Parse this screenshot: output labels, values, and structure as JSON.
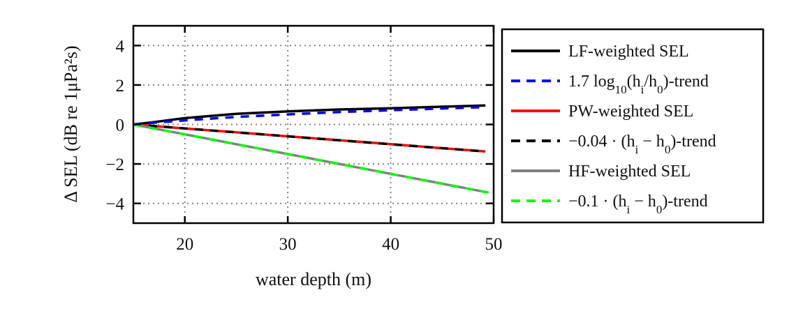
{
  "chart_data": {
    "type": "line",
    "xlabel": "water depth (m)",
    "ylabel": "Δ SEL (dB re 1μPa²s)",
    "xlim": [
      15,
      50
    ],
    "ylim": [
      -5,
      5
    ],
    "xticks": [
      20,
      30,
      40,
      50
    ],
    "xtick_labels": [
      "20",
      "30",
      "40",
      "50"
    ],
    "yticks": [
      4,
      2,
      0,
      -2,
      -4
    ],
    "ytick_labels": [
      "4",
      "2",
      "0",
      "−2",
      "−4"
    ],
    "grid": true,
    "legend_position": "outside-right",
    "series": [
      {
        "name": "LF-weighted SEL",
        "color": "#000000",
        "style": "solid",
        "x": [
          15,
          17,
          20,
          25,
          30,
          35,
          40,
          45,
          49.2
        ],
        "y": [
          0,
          0.12,
          0.32,
          0.54,
          0.66,
          0.76,
          0.82,
          0.9,
          0.96
        ]
      },
      {
        "name": "1.7log10(hi/h0)-trend",
        "color": "#0000ff",
        "style": "dashed",
        "x": [
          15,
          17,
          20,
          25,
          30,
          35,
          40,
          45,
          49.2
        ],
        "y": [
          0,
          0.09,
          0.21,
          0.38,
          0.51,
          0.63,
          0.72,
          0.81,
          0.88
        ]
      },
      {
        "name": "PW-weighted SEL",
        "color": "#ff0000",
        "style": "solid",
        "x": [
          15,
          20,
          25,
          30,
          35,
          40,
          45,
          49.2
        ],
        "y": [
          0,
          -0.2,
          -0.4,
          -0.6,
          -0.8,
          -1.0,
          -1.2,
          -1.37
        ]
      },
      {
        "name": "−0.04·(hi−h0)-trend",
        "color": "#000000",
        "style": "dashed",
        "x": [
          15,
          49.2
        ],
        "y": [
          0,
          -1.37
        ]
      },
      {
        "name": "HF-weighted SEL",
        "color": "#808080",
        "style": "solid",
        "x": [
          15,
          20,
          25,
          30,
          35,
          40,
          45,
          49.2
        ],
        "y": [
          0,
          -0.5,
          -1.0,
          -1.5,
          -2.0,
          -2.5,
          -3.0,
          -3.42
        ]
      },
      {
        "name": "−0.1·(hi−h0)-trend",
        "color": "#00ff00",
        "style": "dashed",
        "x": [
          15,
          50
        ],
        "y": [
          0,
          -3.5
        ]
      }
    ],
    "legend": [
      {
        "label_main": "LF-weighted SEL",
        "color": "#000000",
        "style": "solid"
      },
      {
        "label_main": "1.7 log",
        "sub1": "10",
        "mid": "(h",
        "sub2": "i",
        "tail": "/h",
        "sub3": "0",
        "end": ")-trend",
        "color": "#0000ff",
        "style": "dashed"
      },
      {
        "label_main": "PW-weighted SEL",
        "color": "#ff0000",
        "style": "solid"
      },
      {
        "label_main": "−0.04 · (h",
        "sub2": "i",
        "tail": " − h",
        "sub3": "0",
        "end": ")-trend",
        "color": "#000000",
        "style": "dashed"
      },
      {
        "label_main": "HF-weighted SEL",
        "color": "#808080",
        "style": "solid"
      },
      {
        "label_main": "−0.1 · (h",
        "sub2": "i",
        "tail": " − h",
        "sub3": "0",
        "end": ")-trend",
        "color": "#00ff00",
        "style": "dashed"
      }
    ]
  }
}
